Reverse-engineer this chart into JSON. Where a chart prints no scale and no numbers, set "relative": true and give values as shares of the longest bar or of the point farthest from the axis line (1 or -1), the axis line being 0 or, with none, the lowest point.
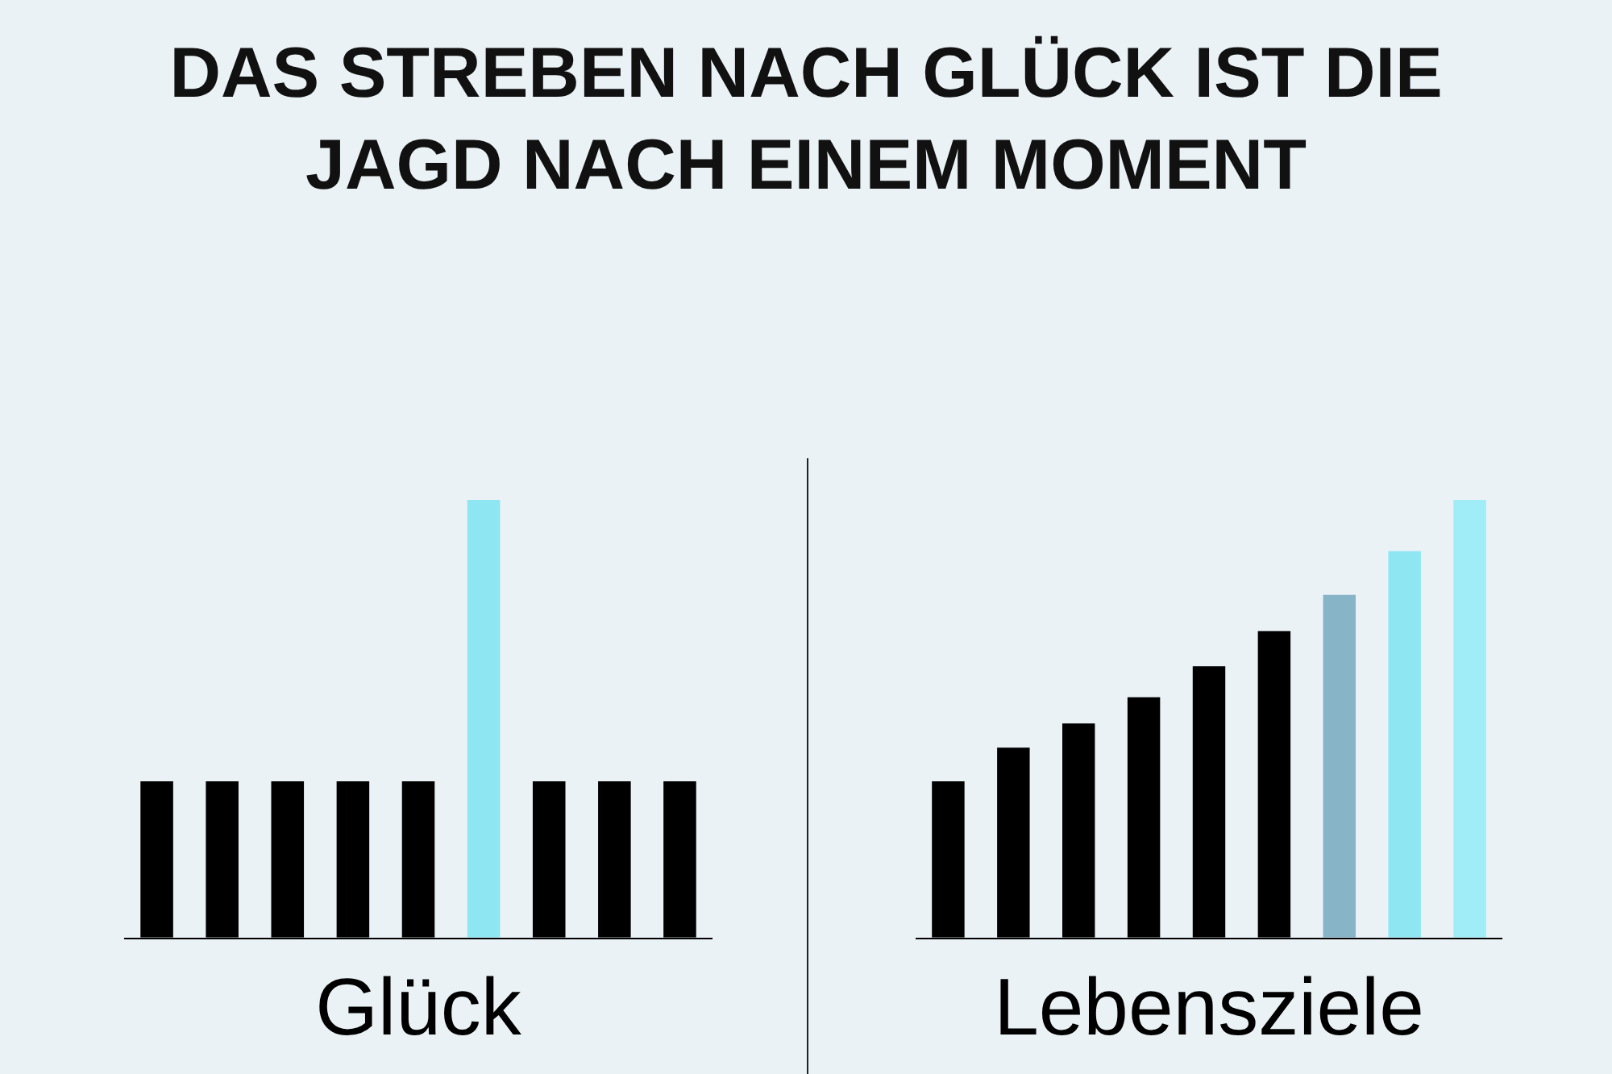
{
  "chart_data": [
    {
      "type": "bar",
      "relative": true,
      "title": "DAS STREBEN NACH GLÜCK IST DIE\nJAGD NACH EINEM MOMENT",
      "xlabel": "Glück",
      "categories": [
        null,
        null,
        null,
        null,
        null,
        null,
        null,
        null,
        null
      ],
      "values": [
        0.357,
        0.357,
        0.357,
        0.357,
        0.357,
        1,
        0.357,
        0.357,
        0.357
      ],
      "colors": [
        "#000000",
        "#000000",
        "#000000",
        "#000000",
        "#000000",
        "#8ee6f3",
        "#000000",
        "#000000",
        "#000000"
      ]
    },
    {
      "type": "bar",
      "relative": true,
      "xlabel": "Lebensziele",
      "categories": [
        null,
        null,
        null,
        null,
        null,
        null,
        null,
        null,
        null
      ],
      "values": [
        0.357,
        0.434,
        0.489,
        0.549,
        0.62,
        0.7,
        0.783,
        0.883,
        1
      ],
      "colors": [
        "#000000",
        "#000000",
        "#000000",
        "#000000",
        "#000000",
        "#000000",
        "#88b4c8",
        "#8ee6f3",
        "#a0ecf7"
      ]
    }
  ]
}
